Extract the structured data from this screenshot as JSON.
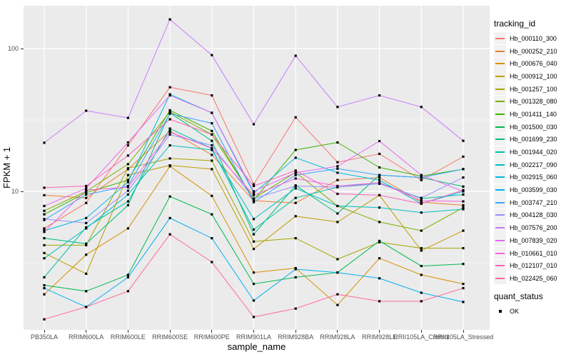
{
  "figure": {
    "y_axis_title": "FPKM + 1",
    "x_axis_title": "sample_name",
    "legend_title": "tracking_id",
    "quant_legend_title": "quant_status",
    "quant_legend_items": [
      "OK"
    ]
  },
  "theme": {
    "panel_bg": "#EBEBEB",
    "grid_color": "#FFFFFF",
    "legend_key_bg": "#F2F2F2",
    "tick_text_color": "#4D4D4D",
    "tick_mark_color": "#333333",
    "marker_color": "#000000",
    "figure_bg": "#FFFFFF"
  },
  "chart_data": {
    "type": "line",
    "title": "",
    "xlabel": "sample_name",
    "ylabel": "FPKM + 1",
    "y_scale": "log10",
    "ylim": [
      1.07,
      200
    ],
    "grid": true,
    "legend_position": "right",
    "marker": "black-square",
    "y_ticks": [
      {
        "label": "10",
        "value": 10
      },
      {
        "label": "100",
        "value": 100
      }
    ],
    "y_minor_gridlines": [
      3.1623,
      31.623
    ],
    "categories": [
      "PB350LA",
      "RRIM600LA",
      "RRIM600LE",
      "RRIM600SE",
      "RRIM600PE",
      "RRIM901LA",
      "RRIM928BA",
      "RRIM928LA",
      "RRIM928LE",
      "RRII105LA_Control",
      "RRII105LA_Stressed"
    ],
    "series": [
      {
        "name": "Hb_000110_300",
        "color": "#F8766D",
        "quant_status": "OK",
        "values": [
          5.5,
          8.3,
          21.0,
          53.6,
          47.0,
          11.2,
          33.0,
          16.0,
          18.3,
          12.0,
          17.5
        ]
      },
      {
        "name": "Hb_000252_210",
        "color": "#EA8331",
        "quant_status": "OK",
        "values": [
          9.4,
          9.0,
          14.3,
          26.5,
          18.0,
          8.6,
          8.3,
          12.0,
          12.5,
          8.4,
          8.0
        ]
      },
      {
        "name": "Hb_000676_040",
        "color": "#D89000",
        "quant_status": "OK",
        "values": [
          1.9,
          3.6,
          5.5,
          15.0,
          9.3,
          2.7,
          2.9,
          1.6,
          3.4,
          2.6,
          2.25
        ]
      },
      {
        "name": "Hb_000912_100",
        "color": "#C09B00",
        "quant_status": "OK",
        "values": [
          3.7,
          2.65,
          13.0,
          15.2,
          14.3,
          3.95,
          6.7,
          6.1,
          9.4,
          3.85,
          5.3
        ]
      },
      {
        "name": "Hb_001257_100",
        "color": "#A3A500",
        "quant_status": "OK",
        "values": [
          4.2,
          4.2,
          14.5,
          17.0,
          16.4,
          4.45,
          4.7,
          3.35,
          4.4,
          4.0,
          4.0
        ]
      },
      {
        "name": "Hb_001328_080",
        "color": "#7CAE00",
        "quant_status": "OK",
        "values": [
          7.3,
          10.0,
          15.5,
          36.0,
          25.0,
          8.9,
          13.6,
          7.9,
          6.1,
          5.3,
          7.7
        ]
      },
      {
        "name": "Hb_001411_140",
        "color": "#39B600",
        "quant_status": "OK",
        "values": [
          6.9,
          9.8,
          12.0,
          37.0,
          26.5,
          8.7,
          19.5,
          22.0,
          14.7,
          12.8,
          14.3
        ]
      },
      {
        "name": "Hb_001500_030",
        "color": "#00BB4E",
        "quant_status": "OK",
        "values": [
          2.2,
          2.0,
          2.6,
          9.2,
          6.9,
          2.25,
          2.5,
          2.7,
          4.5,
          3.0,
          3.1
        ]
      },
      {
        "name": "Hb_001699_230",
        "color": "#00BF7D",
        "quant_status": "OK",
        "values": [
          4.7,
          4.3,
          8.0,
          35.5,
          22.6,
          5.0,
          11.0,
          7.0,
          13.0,
          12.5,
          10.8
        ]
      },
      {
        "name": "Hb_001944_020",
        "color": "#00C1A3",
        "quant_status": "OK",
        "values": [
          2.5,
          5.6,
          8.5,
          27.5,
          20.0,
          5.4,
          9.0,
          10.7,
          11.5,
          8.9,
          9.5
        ]
      },
      {
        "name": "Hb_002217_090",
        "color": "#00BFC4",
        "quant_status": "OK",
        "values": [
          3.4,
          5.5,
          9.5,
          21.0,
          19.5,
          6.4,
          10.5,
          7.9,
          7.7,
          7.1,
          7.5
        ]
      },
      {
        "name": "Hb_002915_060",
        "color": "#00BAE0",
        "quant_status": "OK",
        "values": [
          5.3,
          6.5,
          11.6,
          47.8,
          35.5,
          9.7,
          17.2,
          13.5,
          12.0,
          8.2,
          10.0
        ]
      },
      {
        "name": "Hb_003599_030",
        "color": "#00B0F6",
        "quant_status": "OK",
        "values": [
          2.1,
          1.55,
          2.5,
          6.5,
          4.7,
          1.72,
          2.85,
          2.7,
          2.46,
          1.95,
          1.68
        ]
      },
      {
        "name": "Hb_003747_210",
        "color": "#35A2FF",
        "quant_status": "OK",
        "values": [
          6.3,
          9.5,
          10.9,
          35.0,
          30.0,
          8.4,
          13.0,
          14.4,
          13.0,
          12.5,
          14.3
        ]
      },
      {
        "name": "Hb_004128_030",
        "color": "#9590FF",
        "quant_status": "OK",
        "values": [
          6.4,
          6.0,
          10.1,
          25.0,
          21.0,
          8.9,
          10.9,
          10.7,
          11.3,
          9.0,
          12.5
        ]
      },
      {
        "name": "Hb_007576_200",
        "color": "#C77CFF",
        "quant_status": "OK",
        "values": [
          21.9,
          36.7,
          32.7,
          160.0,
          90.0,
          29.5,
          89.0,
          39.0,
          47.0,
          39.0,
          22.6
        ]
      },
      {
        "name": "Hb_007839_020",
        "color": "#E76BF3",
        "quant_status": "OK",
        "values": [
          7.9,
          10.5,
          22.0,
          47.0,
          35.5,
          10.0,
          13.5,
          15.0,
          22.5,
          13.0,
          10.0
        ]
      },
      {
        "name": "Hb_010661_010",
        "color": "#FA62DB",
        "quant_status": "OK",
        "values": [
          5.2,
          10.2,
          10.7,
          26.0,
          20.0,
          9.4,
          12.3,
          10.9,
          11.5,
          8.6,
          8.5
        ]
      },
      {
        "name": "Hb_012107_010",
        "color": "#FF62BC",
        "quant_status": "OK",
        "values": [
          10.6,
          10.9,
          17.8,
          32.0,
          25.0,
          10.9,
          14.0,
          9.6,
          9.4,
          8.2,
          10.2
        ]
      },
      {
        "name": "Hb_022425_060",
        "color": "#FF6A98",
        "quant_status": "OK",
        "values": [
          1.27,
          1.55,
          2.0,
          5.0,
          3.2,
          1.32,
          1.51,
          1.9,
          1.7,
          1.7,
          2.1
        ]
      }
    ]
  }
}
